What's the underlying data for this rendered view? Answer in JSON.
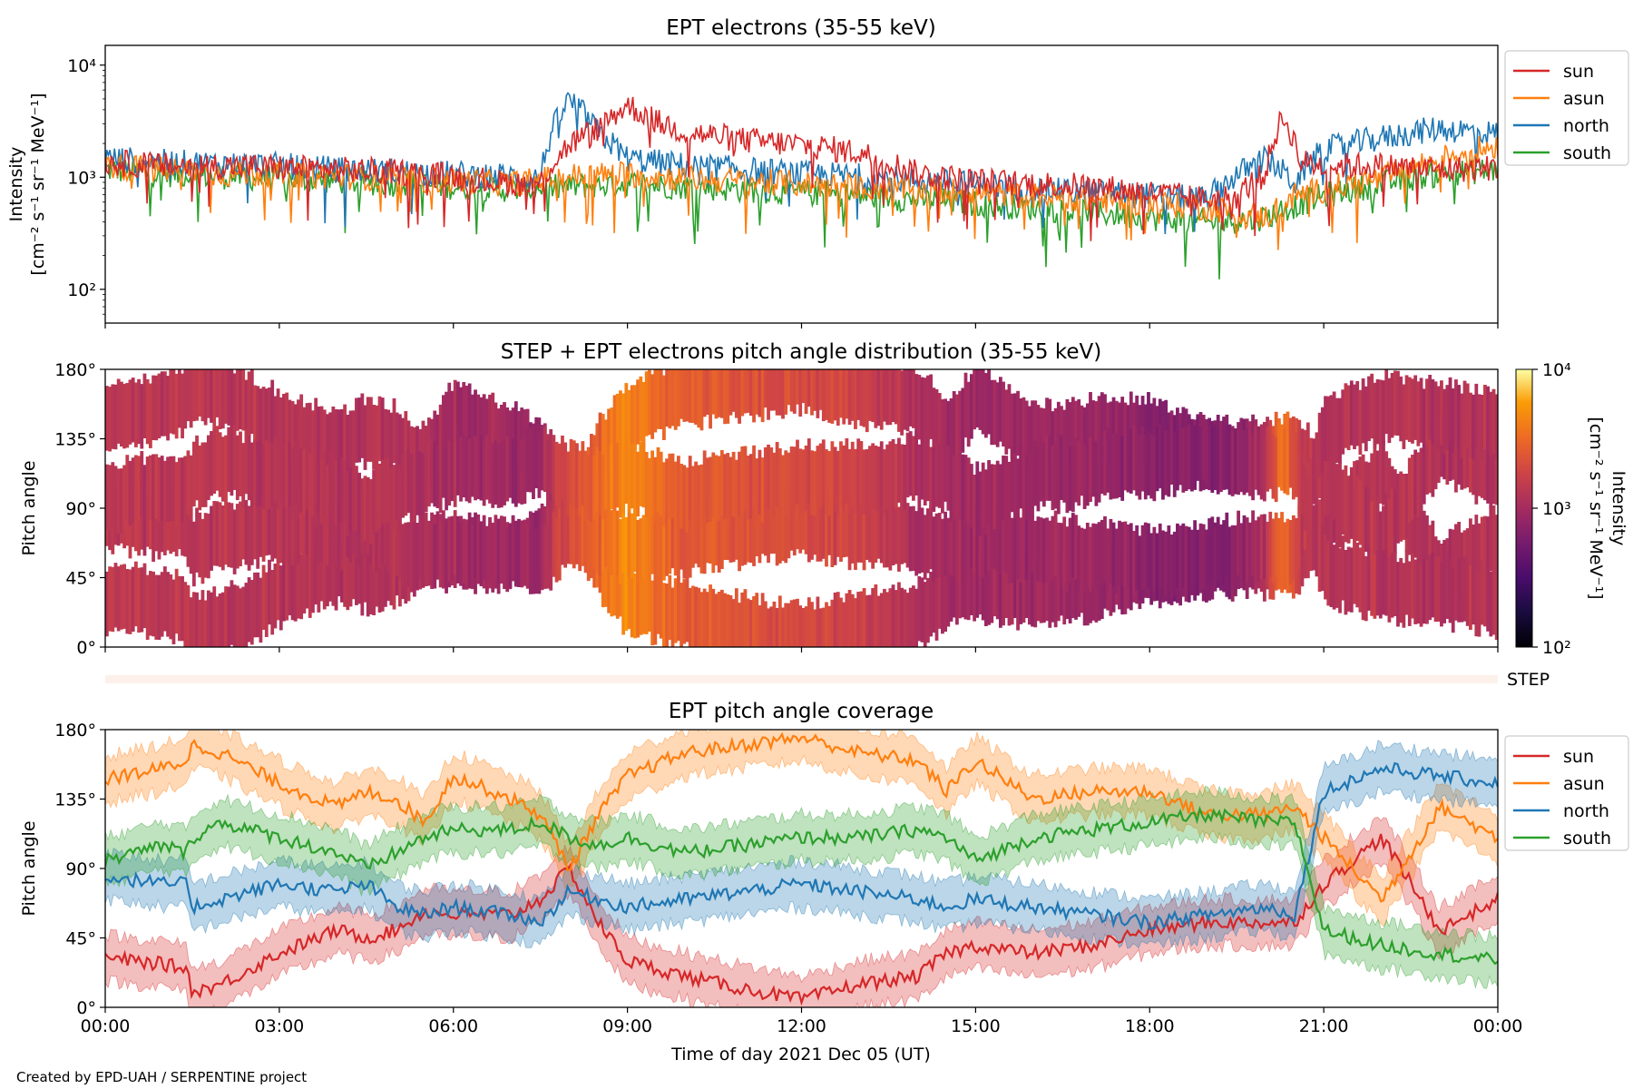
{
  "footer": "Created by EPD-UAH / SERPENTINE project",
  "colors": {
    "sun": "#d62728",
    "asun": "#ff7f0e",
    "north": "#1f77b4",
    "south": "#2ca02c"
  },
  "chart_data": [
    {
      "id": "intensity",
      "type": "line",
      "title": "EPT electrons (35-55 keV)",
      "ylabel": [
        "Intensity",
        "[cm⁻² s⁻¹ sr⁻¹ MeV⁻¹]"
      ],
      "yscale": "log",
      "ylim": [
        50,
        15000
      ],
      "yticks": [
        {
          "v": 100,
          "label": "10²"
        },
        {
          "v": 1000,
          "label": "10³"
        },
        {
          "v": 10000,
          "label": "10⁴"
        }
      ],
      "xlim": [
        0,
        24
      ],
      "legend": {
        "placement": "outside-right",
        "entries": [
          "sun",
          "asun",
          "north",
          "south"
        ]
      },
      "series": [
        {
          "name": "sun",
          "color": "#d62728",
          "x": [
            0,
            1,
            2,
            3,
            4,
            5,
            6,
            7,
            7.5,
            8,
            8.5,
            9,
            9.5,
            10,
            11,
            12,
            13,
            14,
            15,
            16,
            17,
            18,
            19,
            19.5,
            20,
            20.3,
            20.6,
            21,
            22,
            23,
            24
          ],
          "y": [
            1400,
            1300,
            1300,
            1250,
            1200,
            1150,
            1050,
            900,
            900,
            2000,
            2800,
            4500,
            3200,
            2600,
            2200,
            2000,
            1700,
            1100,
            950,
            900,
            850,
            750,
            650,
            700,
            1100,
            3500,
            1400,
            1300,
            1300,
            1200,
            1250
          ]
        },
        {
          "name": "asun",
          "color": "#ff7f0e",
          "x": [
            0,
            1,
            2,
            3,
            4,
            5,
            6,
            7,
            8,
            9,
            10,
            11,
            12,
            13,
            14,
            15,
            16,
            17,
            18,
            19,
            19.5,
            20,
            20.5,
            21,
            22,
            23,
            24
          ],
          "y": [
            1300,
            1200,
            1100,
            1100,
            1050,
            1000,
            950,
            900,
            1050,
            1100,
            1000,
            950,
            900,
            850,
            800,
            750,
            700,
            650,
            600,
            550,
            500,
            450,
            700,
            800,
            1000,
            1500,
            2000
          ]
        },
        {
          "name": "north",
          "color": "#1f77b4",
          "x": [
            0,
            1,
            2,
            3,
            4,
            5,
            6,
            7,
            7.5,
            8,
            8.5,
            9,
            10,
            11,
            12,
            13,
            14,
            15,
            16,
            17,
            18,
            19,
            20,
            20.5,
            21,
            22,
            23,
            24
          ],
          "y": [
            1500,
            1400,
            1350,
            1300,
            1200,
            1150,
            1100,
            1050,
            1000,
            5000,
            2500,
            1500,
            1300,
            1200,
            1100,
            1050,
            950,
            900,
            800,
            750,
            700,
            650,
            1500,
            900,
            1800,
            2300,
            2800,
            2500
          ]
        },
        {
          "name": "south",
          "color": "#2ca02c",
          "x": [
            0,
            1,
            2,
            3,
            4,
            5,
            6,
            7,
            8,
            9,
            10,
            11,
            12,
            13,
            14,
            15,
            16,
            17,
            18,
            19,
            20,
            21,
            22,
            23,
            24
          ],
          "y": [
            1200,
            1100,
            1050,
            1000,
            950,
            900,
            850,
            800,
            850,
            900,
            850,
            800,
            750,
            700,
            650,
            600,
            550,
            500,
            450,
            400,
            450,
            700,
            900,
            1100,
            1200
          ]
        }
      ]
    },
    {
      "id": "pad",
      "type": "heatmap",
      "title": "STEP + EPT electrons pitch angle distribution (35-55 keV)",
      "ylabel": "Pitch angle",
      "ylim": [
        0,
        180
      ],
      "yticks": [
        "0°",
        "45°",
        "90°",
        "135°",
        "180°"
      ],
      "xlim": [
        0,
        24
      ],
      "colorbar": {
        "label": "Intensity",
        "units": "[cm⁻² s⁻¹ sr⁻¹ MeV⁻¹]",
        "scale": "log",
        "range": [
          100,
          10000
        ],
        "ticks": [
          "10²",
          "10³",
          "10⁴"
        ],
        "colormap": "inferno"
      },
      "step_label": "STEP"
    },
    {
      "id": "coverage",
      "type": "line",
      "title": "EPT pitch angle coverage",
      "ylabel": "Pitch angle",
      "xlabel": "Time of day 2021 Dec 05 (UT)",
      "ylim": [
        0,
        180
      ],
      "yticks": [
        "0°",
        "45°",
        "90°",
        "135°",
        "180°"
      ],
      "xlim": [
        0,
        24
      ],
      "xticks": [
        "00:00",
        "03:00",
        "06:00",
        "09:00",
        "12:00",
        "15:00",
        "18:00",
        "21:00",
        "00:00"
      ],
      "legend": {
        "placement": "outside-right",
        "entries": [
          "sun",
          "asun",
          "north",
          "south"
        ]
      },
      "band_halfwidth_deg": 15,
      "series": [
        {
          "name": "sun",
          "color": "#d62728",
          "x": [
            0,
            1,
            1.4,
            1.5,
            2,
            3,
            4,
            4.5,
            5,
            5.5,
            6,
            7,
            7.5,
            8,
            8.5,
            9,
            10,
            11,
            12,
            13,
            14,
            14.5,
            15,
            16,
            17,
            18,
            19,
            20,
            20.5,
            21,
            22,
            23,
            24
          ],
          "y": [
            32,
            28,
            25,
            10,
            15,
            35,
            50,
            45,
            50,
            62,
            60,
            60,
            70,
            90,
            55,
            30,
            20,
            12,
            5,
            15,
            20,
            35,
            40,
            35,
            40,
            50,
            55,
            55,
            55,
            80,
            110,
            50,
            70
          ]
        },
        {
          "name": "asun",
          "color": "#ff7f0e",
          "x": [
            0,
            1,
            1.4,
            1.5,
            2,
            3,
            4,
            4.5,
            5,
            5.5,
            6,
            7,
            7.5,
            8,
            8.5,
            9,
            10,
            11,
            12,
            13,
            14,
            14.5,
            15,
            16,
            17,
            18,
            19,
            20,
            20.5,
            21,
            22,
            23,
            24
          ],
          "y": [
            148,
            155,
            160,
            170,
            165,
            145,
            130,
            140,
            135,
            120,
            150,
            135,
            125,
            90,
            125,
            150,
            165,
            170,
            175,
            165,
            160,
            140,
            160,
            135,
            140,
            140,
            125,
            125,
            130,
            110,
            70,
            130,
            110
          ]
        },
        {
          "name": "north",
          "color": "#1f77b4",
          "x": [
            0,
            1,
            1.4,
            1.5,
            2,
            3,
            4,
            4.5,
            5,
            5.5,
            6,
            7,
            7.5,
            8,
            8.5,
            9,
            10,
            11,
            12,
            13,
            14,
            14.5,
            15,
            16,
            17,
            18,
            19,
            20,
            20.5,
            21,
            22,
            23,
            24
          ],
          "y": [
            85,
            80,
            80,
            65,
            70,
            80,
            75,
            80,
            65,
            60,
            65,
            60,
            55,
            75,
            70,
            65,
            70,
            75,
            80,
            75,
            70,
            65,
            70,
            65,
            60,
            55,
            60,
            65,
            60,
            140,
            155,
            150,
            145
          ]
        },
        {
          "name": "south",
          "color": "#2ca02c",
          "x": [
            0,
            1,
            1.4,
            1.5,
            2,
            3,
            4,
            4.5,
            5,
            5.5,
            6,
            7,
            7.5,
            8,
            8.5,
            9,
            10,
            11,
            12,
            13,
            14,
            14.5,
            15,
            16,
            17,
            18,
            19,
            20,
            20.5,
            21,
            22,
            23,
            24
          ],
          "y": [
            95,
            105,
            100,
            110,
            120,
            110,
            100,
            90,
            100,
            110,
            115,
            115,
            120,
            110,
            105,
            110,
            100,
            105,
            110,
            110,
            115,
            110,
            95,
            110,
            115,
            120,
            125,
            120,
            120,
            50,
            40,
            35,
            30
          ]
        }
      ]
    }
  ]
}
